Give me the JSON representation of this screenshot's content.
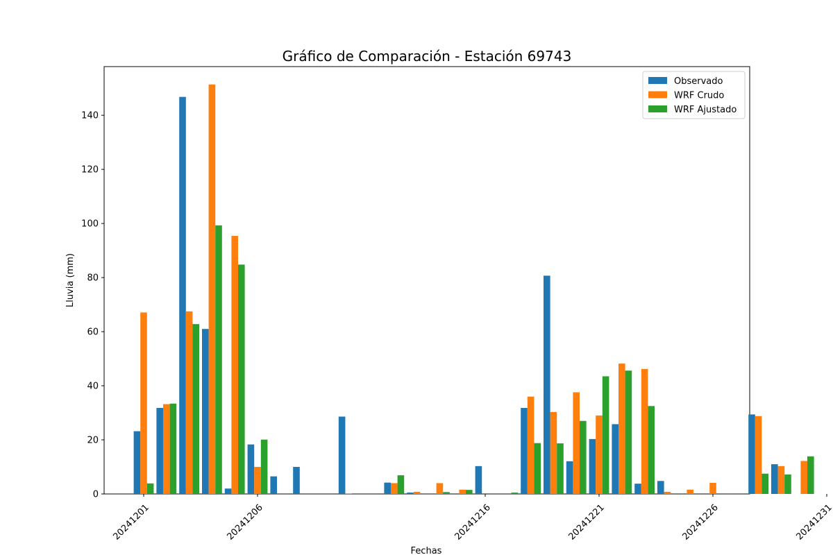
{
  "chart_data": {
    "type": "bar",
    "title": "Gráfico de Comparación - Estación 69743",
    "xlabel": "Fechas",
    "ylabel": "Lluvia (mm)",
    "ylim": [
      0,
      158
    ],
    "yticks": [
      0,
      20,
      40,
      60,
      80,
      100,
      120,
      140
    ],
    "categories": [
      "20241201",
      "20241202",
      "20241203",
      "20241204",
      "20241205",
      "20241206",
      "20241207",
      "20241208",
      "20241210",
      "20241211",
      "20241212",
      "20241213",
      "20241214",
      "20241215",
      "20241216",
      "20241217",
      "20241218",
      "20241219",
      "20241220",
      "20241221",
      "20241222",
      "20241223",
      "20241224",
      "20241225",
      "20241226",
      "20241227",
      "20241228",
      "20241229",
      "20241230",
      "20241231"
    ],
    "xtick_labels": [
      "20241201",
      "20241206",
      "20241216",
      "20241221",
      "20241226",
      "20241231"
    ],
    "legend_position": "top-right",
    "grid": false,
    "series": [
      {
        "name": "Observado",
        "color": "#1f77b4",
        "values": [
          23.2,
          31.8,
          146.8,
          61.0,
          2.0,
          18.3,
          6.5,
          10.0,
          28.6,
          0,
          4.2,
          0.5,
          0.2,
          0,
          10.3,
          0,
          31.8,
          80.7,
          12.1,
          20.3,
          25.8,
          3.8,
          4.8,
          0,
          0,
          0.2,
          29.4,
          11.0,
          0,
          0
        ]
      },
      {
        "name": "WRF Crudo",
        "color": "#ff7f0e",
        "values": [
          67.1,
          33.2,
          67.5,
          151.4,
          95.4,
          10.0,
          0,
          0,
          0.2,
          0,
          4.0,
          0.8,
          4.0,
          1.6,
          0,
          0,
          36.0,
          30.3,
          37.6,
          29.0,
          48.2,
          46.2,
          0.8,
          1.6,
          4.1,
          0,
          28.8,
          10.3,
          12.2,
          0
        ]
      },
      {
        "name": "WRF Ajustado",
        "color": "#2ca02c",
        "values": [
          3.9,
          33.4,
          62.8,
          99.3,
          84.8,
          20.1,
          0,
          0,
          0,
          0,
          6.9,
          0,
          0.7,
          1.5,
          0,
          0.5,
          18.8,
          18.7,
          27.0,
          43.5,
          45.6,
          32.5,
          0,
          0,
          0,
          0,
          7.5,
          7.2,
          13.9,
          0
        ]
      }
    ]
  }
}
